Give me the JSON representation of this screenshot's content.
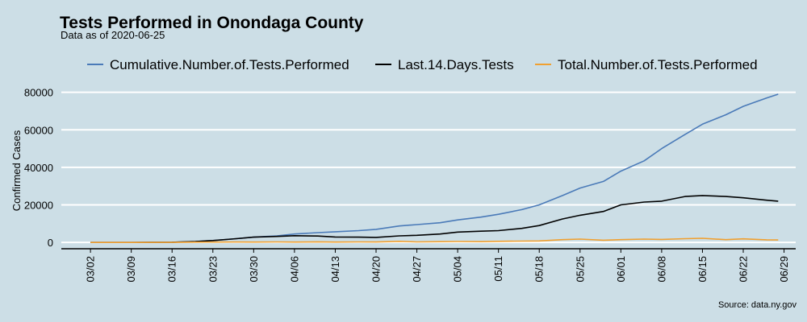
{
  "chart_data": {
    "type": "line",
    "title": "Tests Performed in Onondaga County",
    "subtitle": "Data as of 2020-06-25",
    "xlabel": "",
    "ylabel": "Confirmed Cases",
    "caption": "Source: data.ny.gov",
    "legend_position": "top",
    "grid": "horizontal",
    "x_start_date": "2020-03-02",
    "x_tick_labels": [
      "03/02",
      "03/09",
      "03/16",
      "03/23",
      "03/30",
      "04/06",
      "04/13",
      "04/20",
      "04/27",
      "05/04",
      "05/11",
      "05/18",
      "05/25",
      "06/01",
      "06/08",
      "06/15",
      "06/22",
      "06/29"
    ],
    "xlim": [
      "2020-02-26",
      "2020-07-01"
    ],
    "ylim": [
      -2500,
      82000
    ],
    "y_ticks": [
      0,
      20000,
      40000,
      60000,
      80000
    ],
    "y_tick_labels": [
      "0",
      "20000",
      "40000",
      "60000",
      "80000"
    ],
    "series": [
      {
        "name": "Cumulative.Number.of.Tests.Performed",
        "color": "#4a7ab8",
        "points": [
          [
            "2020-03-02",
            0
          ],
          [
            "2020-03-09",
            0
          ],
          [
            "2020-03-16",
            100
          ],
          [
            "2020-03-20",
            500
          ],
          [
            "2020-03-23",
            1000
          ],
          [
            "2020-03-27",
            2000
          ],
          [
            "2020-03-30",
            2800
          ],
          [
            "2020-04-03",
            3500
          ],
          [
            "2020-04-06",
            4500
          ],
          [
            "2020-04-10",
            5200
          ],
          [
            "2020-04-13",
            5700
          ],
          [
            "2020-04-17",
            6300
          ],
          [
            "2020-04-20",
            7000
          ],
          [
            "2020-04-24",
            8800
          ],
          [
            "2020-04-27",
            9500
          ],
          [
            "2020-05-01",
            10500
          ],
          [
            "2020-05-04",
            12000
          ],
          [
            "2020-05-08",
            13500
          ],
          [
            "2020-05-11",
            15000
          ],
          [
            "2020-05-15",
            17500
          ],
          [
            "2020-05-18",
            20000
          ],
          [
            "2020-05-22",
            25000
          ],
          [
            "2020-05-25",
            29000
          ],
          [
            "2020-05-29",
            32500
          ],
          [
            "2020-06-01",
            38000
          ],
          [
            "2020-06-05",
            43500
          ],
          [
            "2020-06-08",
            50000
          ],
          [
            "2020-06-12",
            57500
          ],
          [
            "2020-06-15",
            63000
          ],
          [
            "2020-06-19",
            68000
          ],
          [
            "2020-06-22",
            72500
          ],
          [
            "2020-06-26",
            77000
          ],
          [
            "2020-06-28",
            79000
          ]
        ]
      },
      {
        "name": "Last.14.Days.Tests",
        "color": "#000000",
        "points": [
          [
            "2020-03-02",
            0
          ],
          [
            "2020-03-09",
            0
          ],
          [
            "2020-03-16",
            100
          ],
          [
            "2020-03-20",
            500
          ],
          [
            "2020-03-23",
            1000
          ],
          [
            "2020-03-27",
            2000
          ],
          [
            "2020-03-30",
            2800
          ],
          [
            "2020-04-03",
            3200
          ],
          [
            "2020-04-06",
            3600
          ],
          [
            "2020-04-10",
            3400
          ],
          [
            "2020-04-13",
            2900
          ],
          [
            "2020-04-17",
            2800
          ],
          [
            "2020-04-20",
            2700
          ],
          [
            "2020-04-24",
            3500
          ],
          [
            "2020-04-27",
            3800
          ],
          [
            "2020-05-01",
            4500
          ],
          [
            "2020-05-04",
            5500
          ],
          [
            "2020-05-08",
            6000
          ],
          [
            "2020-05-11",
            6300
          ],
          [
            "2020-05-15",
            7500
          ],
          [
            "2020-05-18",
            9000
          ],
          [
            "2020-05-22",
            12500
          ],
          [
            "2020-05-25",
            14500
          ],
          [
            "2020-05-29",
            16500
          ],
          [
            "2020-06-01",
            20000
          ],
          [
            "2020-06-05",
            21500
          ],
          [
            "2020-06-08",
            22000
          ],
          [
            "2020-06-12",
            24500
          ],
          [
            "2020-06-15",
            25000
          ],
          [
            "2020-06-19",
            24500
          ],
          [
            "2020-06-22",
            23800
          ],
          [
            "2020-06-26",
            22500
          ],
          [
            "2020-06-28",
            22000
          ]
        ]
      },
      {
        "name": "Total.Number.of.Tests.Performed",
        "color": "#f0a030",
        "points": [
          [
            "2020-03-02",
            0
          ],
          [
            "2020-03-09",
            0
          ],
          [
            "2020-03-16",
            50
          ],
          [
            "2020-03-20",
            150
          ],
          [
            "2020-03-23",
            200
          ],
          [
            "2020-03-27",
            250
          ],
          [
            "2020-03-30",
            200
          ],
          [
            "2020-04-03",
            300
          ],
          [
            "2020-04-06",
            200
          ],
          [
            "2020-04-10",
            350
          ],
          [
            "2020-04-13",
            200
          ],
          [
            "2020-04-17",
            300
          ],
          [
            "2020-04-20",
            250
          ],
          [
            "2020-04-24",
            600
          ],
          [
            "2020-04-27",
            300
          ],
          [
            "2020-05-01",
            400
          ],
          [
            "2020-05-04",
            500
          ],
          [
            "2020-05-08",
            400
          ],
          [
            "2020-05-11",
            600
          ],
          [
            "2020-05-15",
            700
          ],
          [
            "2020-05-18",
            800
          ],
          [
            "2020-05-22",
            1500
          ],
          [
            "2020-05-25",
            1800
          ],
          [
            "2020-05-29",
            1200
          ],
          [
            "2020-06-01",
            1500
          ],
          [
            "2020-06-05",
            1800
          ],
          [
            "2020-06-08",
            1600
          ],
          [
            "2020-06-12",
            2000
          ],
          [
            "2020-06-15",
            2200
          ],
          [
            "2020-06-19",
            1500
          ],
          [
            "2020-06-22",
            1900
          ],
          [
            "2020-06-26",
            1400
          ],
          [
            "2020-06-28",
            1300
          ]
        ]
      }
    ]
  }
}
